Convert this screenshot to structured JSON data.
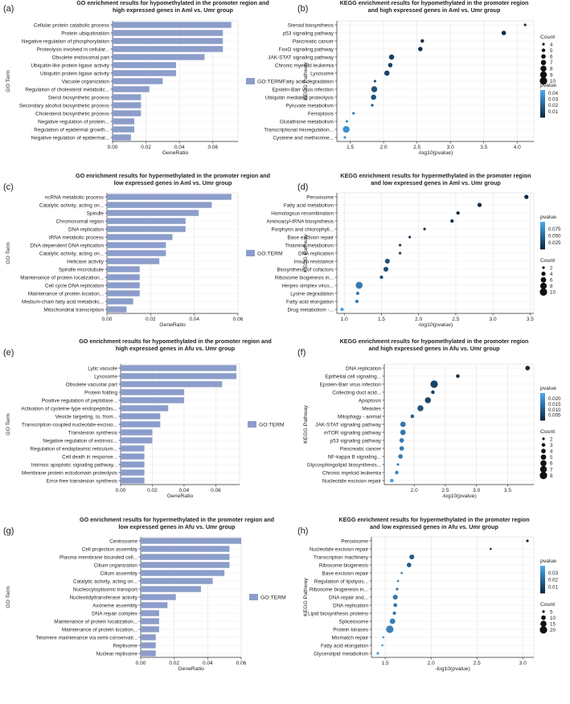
{
  "figure_title": "",
  "colors": {
    "bar": "#8c9dcb",
    "panel_bg": "#ffffff",
    "grid": "#e9e9e9",
    "axis": "#333333",
    "pvalue_low": "#0f2a44",
    "pvalue_high": "#4aa9f0"
  },
  "chart_data": [
    {
      "panel": "(a)",
      "type": "bar",
      "title": "GO enrichment results for hypomethylated in the promoter region and\nhigh expressed genes in Aml vs. Umr group",
      "xlabel": "GeneRatio",
      "ylabel": "GO Term",
      "legend": "GO:TERM",
      "xlim": [
        0,
        0.075
      ],
      "xticks": [
        0.0,
        0.02,
        0.04,
        0.06
      ],
      "xtick_labels": [
        "0.00",
        "0.02",
        "0.04",
        "0.06"
      ],
      "categories": [
        "Cellular protein catabolic process",
        "Protein ubiquitination",
        "Negative regulation of phosphorylation",
        "Proteolysis involved in cellular...",
        "Obsolete endosomal part",
        "Ubiquitin-like protein ligase activity",
        "Ubiquitin protein ligase activity",
        "Vacuole organization",
        "Regulation of cholesterol metabolic...",
        "Sterol biosynthetic process",
        "Secondary alcohol biosynthetic process",
        "Cholesterol biosynthetic process",
        "Negative regulation of protein...",
        "Regulation of epidermal growth...",
        "Negative regulation of epidermal..."
      ],
      "values": [
        0.071,
        0.066,
        0.066,
        0.066,
        0.055,
        0.038,
        0.038,
        0.03,
        0.022,
        0.017,
        0.017,
        0.017,
        0.013,
        0.013,
        0.011
      ]
    },
    {
      "panel": "(b)",
      "type": "scatter",
      "title": "KEGG enrichment results for hypomethylated in the promoter region\nand high expressed genes in Aml vs. Umr group",
      "xlabel": "-log10(pvalue)",
      "ylabel": "KEGG Pathway",
      "xlim": [
        1.3,
        4.25
      ],
      "xticks": [
        1.5,
        2.0,
        2.5,
        3.0,
        3.5,
        4.0
      ],
      "xtick_labels": [
        "1.5",
        "2.0",
        "2.5",
        "3.0",
        "3.5",
        "4.0"
      ],
      "categories": [
        "Steroid biosynthesis",
        "p53 signaling pathway",
        "Pancreatic cancer",
        "FoxO signaling pathway",
        "JAK-STAT signaling pathway",
        "Chronic myeloid leukemia",
        "Lysosome",
        "Fatty acid degradation",
        "Epstein-Barr virus infection",
        "Ubiquitin mediated proteolysis",
        "Pyruvate metabolism",
        "Ferroptosis",
        "Glutathione metabolism",
        "Transcriptional misregulation...",
        "Cysteine and methionine..."
      ],
      "x": [
        4.12,
        3.8,
        2.58,
        2.55,
        2.12,
        2.1,
        2.05,
        1.87,
        1.86,
        1.85,
        1.83,
        1.55,
        1.45,
        1.44,
        1.42
      ],
      "count": [
        4,
        6,
        5,
        6,
        7,
        6,
        7,
        4,
        8,
        7,
        4,
        4,
        4,
        9,
        4
      ],
      "pvalue": [
        0.0001,
        0.0002,
        0.003,
        0.003,
        0.008,
        0.008,
        0.009,
        0.014,
        0.014,
        0.014,
        0.015,
        0.028,
        0.035,
        0.036,
        0.038
      ],
      "size_legend": {
        "title": "Count",
        "values": [
          4,
          5,
          6,
          7,
          8,
          9,
          10
        ]
      },
      "color_legend": {
        "title": "pvalue",
        "ticks": [
          0.04,
          0.03,
          0.02,
          0.01
        ],
        "labels": [
          "0.04",
          "0.03",
          "0.02",
          "0.01"
        ],
        "range": [
          0.0001,
          0.045
        ]
      }
    },
    {
      "panel": "(c)",
      "type": "bar",
      "title": "GO enrichment results for hypermethylated in the promoter region and\nlow expressed genes in Aml vs. Umr group",
      "xlabel": "GeneRatio",
      "ylabel": "GO Term",
      "legend": "GO:TERM",
      "xlim": [
        0,
        0.06
      ],
      "xticks": [
        0.0,
        0.02,
        0.04,
        0.06
      ],
      "xtick_labels": [
        "0.00",
        "0.02",
        "0.04",
        "0.06"
      ],
      "categories": [
        "ncRNA metabolic process",
        "Catalytic activity, acting on...",
        "Spindle",
        "Chromosomal region",
        "DNA replication",
        "tRNA metabolic process",
        "DNA-dependent DNA replication",
        "Catalytic activity, acting on...",
        "Helicase activity",
        "Spindle microtubule",
        "Maintenance of protein localization...",
        "Cell cycle DNA replication",
        "Maintenance of protein location...",
        "Medium-chain fatty acid metabolic...",
        "Mitochondrial transcription"
      ],
      "values": [
        0.057,
        0.048,
        0.042,
        0.036,
        0.036,
        0.03,
        0.027,
        0.027,
        0.024,
        0.015,
        0.015,
        0.015,
        0.015,
        0.012,
        0.009
      ]
    },
    {
      "panel": "(d)",
      "type": "scatter",
      "title": "KEGG enrichment results for hypermethylated in the promoter region\nand low expressed genes in Aml vs. Umr group",
      "xlabel": "-log10(pvalue)",
      "ylabel": "KEGG Pathway",
      "xlim": [
        0.9,
        3.55
      ],
      "xticks": [
        1.0,
        1.5,
        2.0,
        2.5,
        3.0,
        3.5
      ],
      "xtick_labels": [
        "1.0",
        "1.5",
        "2.0",
        "2.5",
        "3.0",
        "3.5"
      ],
      "categories": [
        "Peroxisome",
        "Fatty acid metabolism",
        "Homologous recombination",
        "Aminoacyl-tRNA biosynthesis",
        "Porphyrin and chlorophyll...",
        "Base excision repair",
        "Thiamine metabolism",
        "DNA replication",
        "Insulin resistance",
        "Biosynthesis of cofactors",
        "Ribosome biogenesis in...",
        "Herpes simplex virus...",
        "Lysine degradation",
        "Fatty acid elongation",
        "Drug metabolism -..."
      ],
      "x": [
        3.45,
        2.82,
        2.53,
        2.45,
        2.08,
        1.88,
        1.75,
        1.75,
        1.58,
        1.56,
        1.5,
        1.2,
        1.18,
        1.17,
        0.97
      ],
      "count": [
        4,
        4,
        3,
        3,
        2,
        2,
        2,
        2,
        5,
        5,
        3,
        9,
        3,
        3,
        3
      ],
      "pvalue": [
        0.0004,
        0.0015,
        0.003,
        0.0035,
        0.008,
        0.013,
        0.018,
        0.018,
        0.026,
        0.027,
        0.031,
        0.063,
        0.066,
        0.068,
        0.095
      ],
      "size_legend": {
        "title": "Count",
        "values": [
          2,
          4,
          6,
          8,
          10
        ]
      },
      "color_legend": {
        "title": "pvalue",
        "ticks": [
          0.075,
          0.05,
          0.025
        ],
        "labels": [
          "0.075",
          "0.050",
          "0.025"
        ],
        "range": [
          0.0004,
          0.1
        ]
      }
    },
    {
      "panel": "(e)",
      "type": "bar",
      "title": "GO enrichment results for hypomethylated in the promoter region and\nhigh expressed genes in Afu vs. Umr group",
      "xlabel": "GeneRatio",
      "ylabel": "GO Term",
      "legend": "GO:TERM",
      "xlim": [
        0,
        0.075
      ],
      "xticks": [
        0.0,
        0.02,
        0.04,
        0.06
      ],
      "xtick_labels": [
        "0.00",
        "0.02",
        "0.04",
        "0.06"
      ],
      "categories": [
        "Lytic vacuole",
        "Lysosome",
        "Obsolete vacuolar part",
        "Protein folding",
        "Positive regulation of peptidase...",
        "Activation of cysteine-type endopeptidas...",
        "Vesicle targeting, to, from...",
        "Transcription-coupled nucleotide-excisio...",
        "Translesion synthesis",
        "Negative regulation of extrinsic...",
        "Regulation of endoplasmic reticulum...",
        "Cell death in response...",
        "Intrinsic apoptotic signaling pathway...",
        "Membrane protein ectodomain proteolysis",
        "Error-free translesion synthesis"
      ],
      "values": [
        0.073,
        0.073,
        0.064,
        0.04,
        0.04,
        0.03,
        0.025,
        0.025,
        0.02,
        0.02,
        0.015,
        0.015,
        0.015,
        0.015,
        0.015
      ]
    },
    {
      "panel": "(f)",
      "type": "scatter",
      "title": "KEGG enrichment results for hypomethylated in the promoter region\nand high expressed genes in Afu vs. Umr group",
      "xlabel": "-log10(pvalue)",
      "ylabel": "KEGG Pathway",
      "xlim": [
        1.52,
        3.92
      ],
      "xticks": [
        2.0,
        2.5,
        3.0,
        3.5
      ],
      "xtick_labels": [
        "2.0",
        "2.5",
        "3.0",
        "3.5"
      ],
      "categories": [
        "DNA replication",
        "Epithelial cell signaling...",
        "Epstein-Barr virus infection",
        "Collecting duct acid...",
        "Apoptosis",
        "Measles",
        "Mitophagy - animal",
        "JAK-STAT signaling pathway",
        "mTOR signaling pathway",
        "p53 signaling pathway",
        "Pancreatic cancer",
        "NF-kappa B signaling...",
        "Glycosphingolipid biosynthesis...",
        "Chronic myeloid leukemia",
        "Nucleotide excision repair"
      ],
      "x": [
        3.82,
        2.7,
        2.32,
        2.3,
        2.22,
        2.1,
        1.97,
        1.82,
        1.82,
        1.8,
        1.8,
        1.78,
        1.74,
        1.72,
        1.64
      ],
      "count": [
        4,
        3,
        8,
        3,
        6,
        6,
        3,
        5,
        5,
        4,
        4,
        4,
        2,
        3,
        3
      ],
      "pvalue": [
        0.0002,
        0.002,
        0.005,
        0.005,
        0.006,
        0.008,
        0.011,
        0.015,
        0.015,
        0.016,
        0.016,
        0.017,
        0.018,
        0.019,
        0.023
      ],
      "size_legend": {
        "title": "Count",
        "values": [
          2,
          3,
          4,
          5,
          6,
          7,
          8
        ]
      },
      "color_legend": {
        "title": "pvalue",
        "ticks": [
          0.02,
          0.015,
          0.01,
          0.005
        ],
        "labels": [
          "0.020",
          "0.015",
          "0.010",
          "0.005"
        ],
        "range": [
          0.0002,
          0.025
        ]
      }
    },
    {
      "panel": "(g)",
      "type": "bar",
      "title": "GO enrichment results for hypermethylated in the promoter region and\nlow expressed genes in Afu vs. Umr group",
      "xlabel": "GeneRatio",
      "ylabel": "GO Term",
      "legend": "GO:TERM",
      "xlim": [
        0,
        0.06
      ],
      "xticks": [
        0.0,
        0.02,
        0.04,
        0.06
      ],
      "xtick_labels": [
        "0.00",
        "0.02",
        "0.04",
        "0.06"
      ],
      "categories": [
        "Centrosome",
        "Cell projection assembly",
        "Plasma membrane bounded cell...",
        "Cilium organization",
        "Cilium assembly",
        "Catalytic activity, acting on...",
        "Nucleocytoplasmic transport",
        "Nucleotidyltransferase activity",
        "Axoneme assembly",
        "DNA repair complex",
        "Maintenance of protein localization...",
        "Maintenance of protein location...",
        "Telomere maintenance via semi-conservati...",
        "Replisome",
        "Nuclear replisome"
      ],
      "values": [
        0.06,
        0.053,
        0.053,
        0.053,
        0.05,
        0.043,
        0.036,
        0.021,
        0.016,
        0.011,
        0.011,
        0.011,
        0.009,
        0.009,
        0.009
      ]
    },
    {
      "panel": "(h)",
      "type": "scatter",
      "title": "KEGG enrichment results for hypermethylated in the promoter region\nand low expressed genes in Afu vs. Umr group",
      "xlabel": "-log10(pvalue)",
      "ylabel": "KEGG Pathway",
      "xlim": [
        1.35,
        3.12
      ],
      "xticks": [
        1.5,
        2.0,
        2.5,
        3.0
      ],
      "xtick_labels": [
        "1.5",
        "2.0",
        "2.5",
        "3.0"
      ],
      "categories": [
        "Peroxisome",
        "Nucleotide excision repair",
        "Transcription machinery",
        "Ribosome biogenesis",
        "Base excision repair",
        "Regulation of lipolysis...",
        "Ribosome biogenesis in...",
        "DNA repair and...",
        "DNA replication",
        "Lipid biosynthesis proteins",
        "Spliceosome",
        "Protein kinases",
        "Mismatch repair",
        "Fatty acid elongation",
        "Glycerolipid metabolism"
      ],
      "x": [
        3.05,
        2.65,
        1.79,
        1.76,
        1.68,
        1.64,
        1.63,
        1.61,
        1.61,
        1.6,
        1.58,
        1.55,
        1.48,
        1.47,
        1.42
      ],
      "count": [
        5,
        4,
        11,
        10,
        4,
        4,
        5,
        11,
        8,
        7,
        13,
        20,
        4,
        4,
        5
      ],
      "pvalue": [
        0.0009,
        0.002,
        0.016,
        0.017,
        0.021,
        0.023,
        0.023,
        0.025,
        0.025,
        0.025,
        0.026,
        0.028,
        0.033,
        0.034,
        0.038
      ],
      "size_legend": {
        "title": "Count",
        "values": [
          5,
          10,
          15,
          20
        ]
      },
      "color_legend": {
        "title": "pvalue",
        "ticks": [
          0.03,
          0.02,
          0.01
        ],
        "labels": [
          "0.03",
          "0.02",
          "0.01"
        ],
        "range": [
          0.0009,
          0.04
        ]
      }
    }
  ]
}
